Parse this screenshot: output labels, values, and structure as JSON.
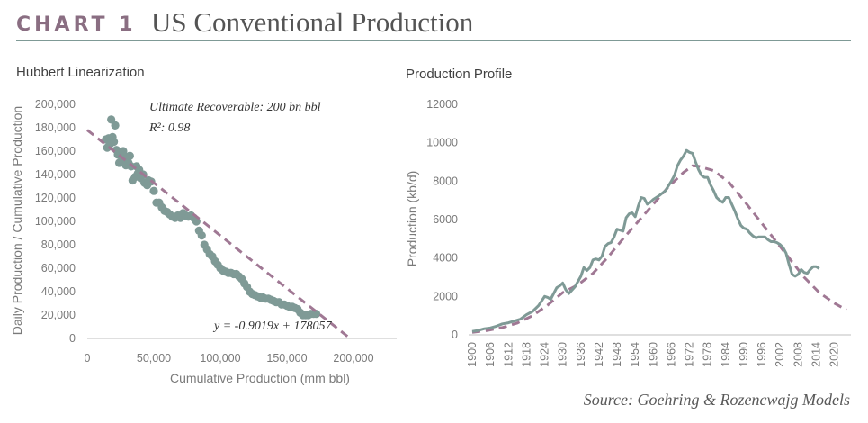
{
  "header": {
    "label": "CHART 1",
    "title": "US Conventional Production"
  },
  "source": "Source: Goehring & Rozencwajg Models",
  "colors": {
    "data": "#7f9a96",
    "fit": "#a07894",
    "label": "#8a6e82",
    "axis": "#bfbfbf"
  },
  "chart_data": [
    {
      "type": "scatter",
      "title": "Hubbert Linearization",
      "xlabel": "Cumulative Production (mm bbl)",
      "ylabel": "Daily Production / Cumulative Production",
      "xlim": [
        0,
        200000
      ],
      "ylim": [
        0,
        200000
      ],
      "x_ticks": [
        "0",
        "50,000",
        "100,000",
        "150,000",
        "200,000"
      ],
      "y_ticks": [
        "0",
        "20,000",
        "40,000",
        "60,000",
        "80,000",
        "100,000",
        "120,000",
        "140,000",
        "160,000",
        "180,000",
        "200,000"
      ],
      "annotations": {
        "urr": "Ultimate Recoverable: 200 bn bbl",
        "r2": "R²: 0.98",
        "equation": "y = -0.9019x + 178057"
      },
      "fit_line": {
        "slope": -0.9019,
        "intercept": 178057
      },
      "series": [
        {
          "points": [
            [
              14000,
              170000
            ],
            [
              15000,
              163000
            ],
            [
              16000,
              171000
            ],
            [
              17000,
              166000
            ],
            [
              18000,
              187000
            ],
            [
              19000,
              172000
            ],
            [
              20000,
              168000
            ],
            [
              21000,
              182000
            ],
            [
              22000,
              161000
            ],
            [
              23000,
              157000
            ],
            [
              24000,
              150000
            ],
            [
              25000,
              158000
            ],
            [
              26000,
              155000
            ],
            [
              27000,
              160000
            ],
            [
              28000,
              152000
            ],
            [
              29000,
              148000
            ],
            [
              30000,
              155000
            ],
            [
              31000,
              150000
            ],
            [
              32000,
              156000
            ],
            [
              33000,
              147000
            ],
            [
              34000,
              135000
            ],
            [
              36000,
              138000
            ],
            [
              37000,
              147000
            ],
            [
              38000,
              141000
            ],
            [
              39000,
              144000
            ],
            [
              40000,
              137000
            ],
            [
              42000,
              140000
            ],
            [
              43000,
              133000
            ],
            [
              45000,
              131000
            ],
            [
              46000,
              135000
            ],
            [
              48000,
              134000
            ],
            [
              50000,
              126000
            ],
            [
              52000,
              116000
            ],
            [
              54000,
              116000
            ],
            [
              56000,
              112000
            ],
            [
              58000,
              109000
            ],
            [
              60000,
              108000
            ],
            [
              62000,
              106000
            ],
            [
              64000,
              104000
            ],
            [
              66000,
              103000
            ],
            [
              68000,
              105000
            ],
            [
              70000,
              103000
            ],
            [
              72000,
              107000
            ],
            [
              74000,
              105000
            ],
            [
              76000,
              104000
            ],
            [
              78000,
              105000
            ],
            [
              80000,
              103000
            ],
            [
              82000,
              100000
            ],
            [
              84000,
              92000
            ],
            [
              86000,
              88000
            ],
            [
              88000,
              80000
            ],
            [
              90000,
              76000
            ],
            [
              92000,
              72000
            ],
            [
              94000,
              70000
            ],
            [
              96000,
              66000
            ],
            [
              98000,
              63000
            ],
            [
              100000,
              60000
            ],
            [
              102000,
              58000
            ],
            [
              104000,
              57000
            ],
            [
              106000,
              56000
            ],
            [
              108000,
              56000
            ],
            [
              110000,
              55000
            ],
            [
              112000,
              55000
            ],
            [
              114000,
              53000
            ],
            [
              116000,
              51000
            ],
            [
              118000,
              47000
            ],
            [
              120000,
              44000
            ],
            [
              122000,
              40000
            ],
            [
              124000,
              38000
            ],
            [
              126000,
              37000
            ],
            [
              128000,
              36000
            ],
            [
              130000,
              35000
            ],
            [
              132000,
              35000
            ],
            [
              134000,
              34000
            ],
            [
              136000,
              34000
            ],
            [
              138000,
              33000
            ],
            [
              140000,
              32000
            ],
            [
              142000,
              31000
            ],
            [
              144000,
              31000
            ],
            [
              146000,
              29000
            ],
            [
              148000,
              29000
            ],
            [
              150000,
              28000
            ],
            [
              152000,
              27000
            ],
            [
              154000,
              27000
            ],
            [
              156000,
              26000
            ],
            [
              158000,
              25000
            ],
            [
              160000,
              22000
            ],
            [
              162000,
              20000
            ],
            [
              164000,
              20000
            ],
            [
              166000,
              20000
            ],
            [
              168000,
              21000
            ],
            [
              170000,
              21000
            ],
            [
              172000,
              21000
            ]
          ]
        }
      ]
    },
    {
      "type": "line",
      "title": "Production Profile",
      "ylabel": "Production (kb/d)",
      "xlim": [
        1900,
        2024
      ],
      "ylim": [
        0,
        12000
      ],
      "x_ticks": [
        "1900",
        "1906",
        "1912",
        "1918",
        "1924",
        "1930",
        "1936",
        "1942",
        "1948",
        "1954",
        "1960",
        "1966",
        "1972",
        "1978",
        "1984",
        "1990",
        "1996",
        "2002",
        "2008",
        "2014",
        "2020"
      ],
      "y_ticks": [
        "0",
        "2000",
        "4000",
        "6000",
        "8000",
        "10000",
        "12000"
      ],
      "series": [
        {
          "style": "solid",
          "x": [
            1900,
            1902,
            1904,
            1906,
            1908,
            1910,
            1912,
            1914,
            1916,
            1918,
            1920,
            1922,
            1924,
            1925,
            1926,
            1928,
            1929,
            1930,
            1931,
            1932,
            1934,
            1936,
            1937,
            1938,
            1939,
            1940,
            1941,
            1942,
            1943,
            1944,
            1945,
            1946,
            1947,
            1948,
            1950,
            1951,
            1952,
            1953,
            1954,
            1955,
            1956,
            1957,
            1958,
            1959,
            1960,
            1962,
            1964,
            1966,
            1967,
            1968,
            1969,
            1970,
            1971,
            1972,
            1973,
            1974,
            1975,
            1976,
            1977,
            1978,
            1979,
            1980,
            1981,
            1982,
            1983,
            1984,
            1985,
            1986,
            1987,
            1988,
            1989,
            1990,
            1991,
            1992,
            1993,
            1994,
            1995,
            1996,
            1997,
            1998,
            1999,
            2000,
            2001,
            2002,
            2003,
            2004,
            2005,
            2006,
            2007,
            2008,
            2009,
            2010,
            2011,
            2012,
            2013,
            2014,
            2015
          ],
          "y": [
            180,
            230,
            320,
            360,
            450,
            570,
            630,
            720,
            820,
            1050,
            1220,
            1530,
            2000,
            1950,
            1850,
            2450,
            2550,
            2700,
            2350,
            2150,
            2500,
            3050,
            3500,
            3350,
            3500,
            3900,
            3950,
            3900,
            4100,
            4600,
            4750,
            4800,
            5100,
            5500,
            5400,
            6100,
            6300,
            6350,
            6150,
            6700,
            7150,
            7100,
            6800,
            6900,
            7050,
            7250,
            7500,
            8000,
            8300,
            8800,
            9100,
            9300,
            9600,
            9500,
            9450,
            9000,
            8600,
            8300,
            8200,
            8200,
            7800,
            7500,
            7150,
            7000,
            6900,
            7150,
            7150,
            6800,
            6450,
            6050,
            5700,
            5550,
            5500,
            5300,
            5150,
            5050,
            5100,
            5100,
            5100,
            4950,
            4850,
            4850,
            4800,
            4700,
            4550,
            4250,
            3650,
            3150,
            3050,
            3150,
            3400,
            3250,
            3200,
            3400,
            3550,
            3550,
            3450
          ]
        },
        {
          "style": "dashed",
          "x": [
            1900,
            1905,
            1910,
            1915,
            1920,
            1925,
            1930,
            1935,
            1940,
            1945,
            1950,
            1955,
            1960,
            1965,
            1970,
            1973,
            1975,
            1980,
            1985,
            1990,
            1995,
            2000,
            2005,
            2010,
            2015,
            2020,
            2024
          ],
          "y": [
            130,
            230,
            380,
            620,
            1000,
            1550,
            2200,
            2600,
            3200,
            4050,
            5000,
            5900,
            6800,
            7700,
            8450,
            8800,
            8780,
            8550,
            7950,
            7000,
            6000,
            5000,
            4000,
            3000,
            2200,
            1650,
            1300
          ]
        }
      ]
    }
  ]
}
